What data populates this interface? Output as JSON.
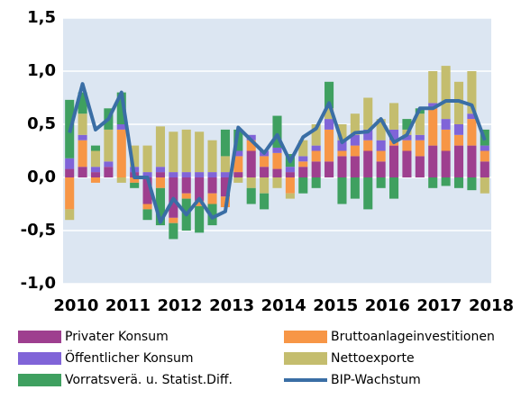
{
  "chart_data": {
    "type": "bar",
    "categories": [
      "2010",
      null,
      null,
      null,
      "2011",
      null,
      null,
      null,
      "2012",
      null,
      null,
      null,
      "2013",
      null,
      null,
      null,
      "2014",
      null,
      null,
      null,
      "2015",
      null,
      null,
      null,
      "2016",
      null,
      null,
      null,
      "2017",
      null,
      null,
      null,
      "2018"
    ],
    "series": [
      {
        "name": "Privater Konsum",
        "color": "#9e3f8f",
        "values": [
          0.08,
          0.1,
          0.05,
          0.1,
          0.0,
          0.05,
          -0.25,
          0.05,
          -0.38,
          -0.15,
          -0.22,
          -0.15,
          -0.18,
          0.05,
          0.25,
          0.1,
          0.08,
          0.05,
          0.1,
          0.15,
          0.15,
          0.2,
          0.2,
          0.25,
          0.15,
          0.3,
          0.25,
          0.2,
          0.3,
          0.25,
          0.3,
          0.3,
          0.15
        ]
      },
      {
        "name": "Bruttoanlageinvestitionen",
        "color": "#f79646",
        "values": [
          -0.3,
          0.25,
          -0.05,
          0.0,
          0.45,
          -0.05,
          -0.05,
          -0.1,
          -0.05,
          -0.05,
          -0.05,
          -0.1,
          -0.1,
          0.15,
          0.1,
          0.1,
          0.15,
          -0.15,
          0.05,
          0.1,
          0.3,
          0.05,
          0.1,
          0.1,
          0.1,
          0.05,
          0.1,
          0.15,
          0.35,
          0.2,
          0.1,
          0.25,
          0.1
        ]
      },
      {
        "name": "Öffentlicher Konsum",
        "color": "#8064d8",
        "values": [
          0.1,
          0.05,
          0.05,
          0.05,
          0.05,
          0.05,
          0.05,
          0.05,
          0.05,
          0.05,
          0.05,
          0.05,
          0.05,
          0.05,
          0.05,
          0.05,
          0.05,
          0.05,
          0.05,
          0.05,
          0.1,
          0.1,
          0.1,
          0.1,
          0.1,
          0.1,
          0.05,
          0.05,
          0.05,
          0.1,
          0.1,
          0.05,
          0.05
        ]
      },
      {
        "name": "Nettoexporte",
        "color": "#c4bd6e",
        "values": [
          -0.1,
          0.2,
          0.15,
          0.3,
          -0.05,
          0.2,
          0.25,
          0.38,
          0.38,
          0.4,
          0.38,
          0.3,
          0.15,
          -0.05,
          -0.1,
          -0.15,
          -0.1,
          -0.05,
          0.15,
          0.2,
          0.1,
          0.15,
          0.2,
          0.3,
          0.2,
          0.25,
          0.05,
          0.2,
          0.3,
          0.5,
          0.4,
          0.4,
          -0.15
        ]
      },
      {
        "name": "Vorratsverä. u. Statist.Diff.",
        "color": "#3fa060",
        "values": [
          0.55,
          0.2,
          0.05,
          0.2,
          0.3,
          -0.05,
          -0.1,
          -0.35,
          -0.15,
          -0.3,
          -0.25,
          -0.2,
          0.25,
          0.2,
          -0.15,
          -0.15,
          0.3,
          0.12,
          -0.15,
          -0.1,
          0.25,
          -0.25,
          -0.2,
          -0.3,
          -0.1,
          -0.2,
          0.1,
          0.05,
          -0.1,
          -0.08,
          -0.1,
          -0.12,
          0.15
        ]
      },
      {
        "name": "BIP-Wachstum",
        "type": "line",
        "color": "#3a6ea5",
        "values": [
          0.42,
          0.88,
          0.45,
          0.55,
          0.8,
          0.0,
          0.0,
          -0.42,
          -0.2,
          -0.35,
          -0.2,
          -0.38,
          -0.32,
          0.47,
          0.35,
          0.23,
          0.4,
          0.15,
          0.38,
          0.46,
          0.7,
          0.33,
          0.42,
          0.43,
          0.55,
          0.33,
          0.4,
          0.65,
          0.65,
          0.72,
          0.72,
          0.68,
          0.35
        ]
      }
    ],
    "ylim": [
      -1.0,
      1.5
    ],
    "yticks": [
      {
        "value": -1.0,
        "label": "-1,0"
      },
      {
        "value": -0.5,
        "label": "-0,5"
      },
      {
        "value": 0,
        "label": "0,0"
      },
      {
        "value": 0.5,
        "label": "0,5"
      },
      {
        "value": 1.0,
        "label": "1,0"
      },
      {
        "value": 1.5,
        "label": "1,5"
      }
    ],
    "grid": true
  }
}
